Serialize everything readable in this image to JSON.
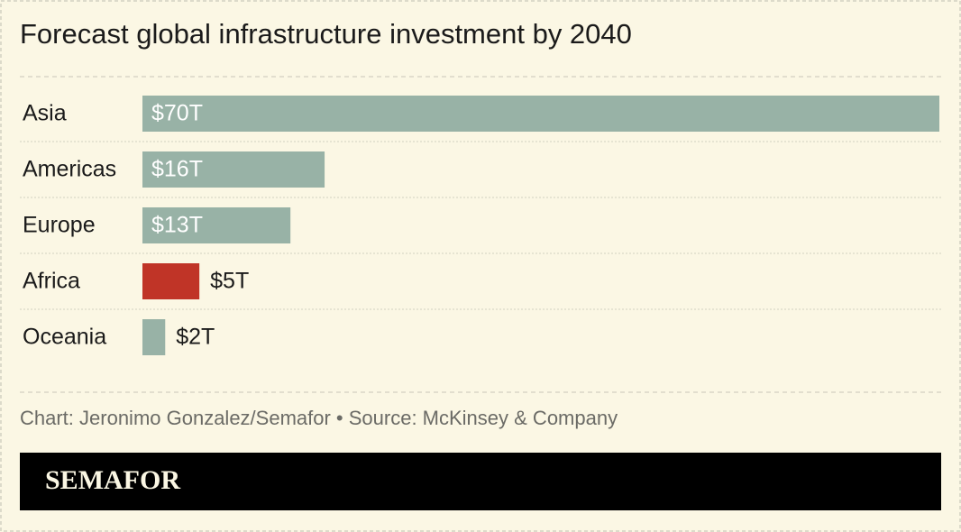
{
  "chart_data": {
    "type": "bar",
    "orientation": "horizontal",
    "title": "Forecast global infrastructure investment by 2040",
    "categories": [
      "Asia",
      "Americas",
      "Europe",
      "Africa",
      "Oceania"
    ],
    "values": [
      70,
      16,
      13,
      5,
      2
    ],
    "value_labels": [
      "$70T",
      "$16T",
      "$13T",
      "$5T",
      "$2T"
    ],
    "colors": [
      "#98b2a6",
      "#98b2a6",
      "#98b2a6",
      "#c03427",
      "#98b2a6"
    ],
    "source": "Chart: Jeronimo Gonzalez/Semafor • Source: McKinsey & Company",
    "brand": "SEMAFOR"
  }
}
